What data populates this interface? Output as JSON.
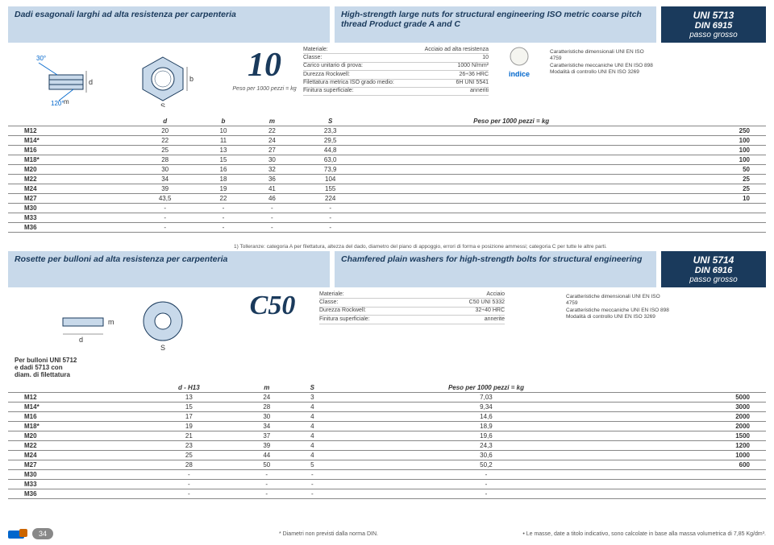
{
  "section1": {
    "title_it": "Dadi esagonali larghi ad alta resistenza per carpenteria",
    "title_en": "High-strength large nuts for structural engineering ISO metric coarse pitch thread Product grade A and C",
    "bignum": "10",
    "peso_label": "Peso per 1000 pezzi = kg",
    "angle1": "30°",
    "angle2": "120°",
    "dim_d": "d",
    "dim_m": "m",
    "dim_b": "b",
    "dim_s": "S",
    "specs": [
      [
        "Materiale:",
        "Acciaio ad alta resistenza"
      ],
      [
        "Classe:",
        "10"
      ],
      [
        "Carico unitario di prova:",
        "1000 N/mm²"
      ],
      [
        "Durezza Rockwell:",
        "26÷36 HRC"
      ],
      [
        "Filettatura metrica ISO grado medio:",
        "6H UNI 5541"
      ],
      [
        "Finitura superficiale:",
        "anneriti"
      ]
    ],
    "indice": "indice",
    "std": {
      "uni": "UNI 5713",
      "din": "DIN 6915",
      "passo": "passo grosso"
    },
    "notes": [
      "Caratteristiche dimensionali UNI EN ISO 4759",
      "Caratteristiche meccaniche UNI EN ISO 898",
      "Modalità di controllo UNI EN ISO 3269"
    ]
  },
  "table1": {
    "cols": [
      "",
      "d",
      "b",
      "m",
      "S",
      "Peso per 1000 pezzi = kg",
      ""
    ],
    "rows": [
      [
        "M12",
        "20",
        "10",
        "22",
        "23,3",
        "",
        "250"
      ],
      [
        "M14*",
        "22",
        "11",
        "24",
        "29,5",
        "",
        "100"
      ],
      [
        "M16",
        "25",
        "13",
        "27",
        "44,8",
        "",
        "100"
      ],
      [
        "M18*",
        "28",
        "15",
        "30",
        "63,0",
        "",
        "100"
      ],
      [
        "M20",
        "30",
        "16",
        "32",
        "73,9",
        "",
        "50"
      ],
      [
        "M22",
        "34",
        "18",
        "36",
        "104",
        "",
        "25"
      ],
      [
        "M24",
        "39",
        "19",
        "41",
        "155",
        "",
        "25"
      ],
      [
        "M27",
        "43,5",
        "22",
        "46",
        "224",
        "",
        "10"
      ],
      [
        "M30",
        "-",
        "-",
        "-",
        "-",
        "",
        ""
      ],
      [
        "M33",
        "-",
        "-",
        "-",
        "-",
        "",
        ""
      ],
      [
        "M36",
        "-",
        "-",
        "-",
        "-",
        "",
        ""
      ]
    ]
  },
  "section2": {
    "tolnote": "1) Tolleranze: categoria A per filettatura, altezza del dado, diametro del piano di appoggio, errori di forma e posizione ammessi; categoria C per tutte le altre parti.",
    "title_it": "Rosette per bulloni ad alta resistenza per carpenteria",
    "title_en": "Chamfered plain washers for high-strength bolts for structural engineering",
    "bignum": "C50",
    "dim_m": "m",
    "dim_d": "d",
    "dim_s": "S",
    "specs": [
      [
        "Materiale:",
        "Acciaio"
      ],
      [
        "Classe:",
        "C50 UNI 5332"
      ],
      [
        "Durezza Rockwell:",
        "32÷40 HRC"
      ],
      [
        "Finitura superficiale:",
        "annerite"
      ]
    ],
    "std": {
      "uni": "UNI 5714",
      "din": "DIN 6916",
      "passo": "passo grosso"
    },
    "notes": [
      "Caratteristiche dimensionali UNI EN ISO 4759",
      "Caratteristiche meccaniche UNI EN ISO 898",
      "Modalità di controllo UNI EN ISO 3269"
    ]
  },
  "table2": {
    "prenote": [
      "Per bulloni UNI 5712",
      "e dadi 5713 con",
      "diam. di filettatura"
    ],
    "cols": [
      "",
      "d - H13",
      "m",
      "S",
      "Peso per 1000 pezzi = kg",
      ""
    ],
    "rows": [
      [
        "M12",
        "13",
        "24",
        "3",
        "7,03",
        "5000"
      ],
      [
        "M14*",
        "15",
        "28",
        "4",
        "9,34",
        "3000"
      ],
      [
        "M16",
        "17",
        "30",
        "4",
        "14,6",
        "2000"
      ],
      [
        "M18*",
        "19",
        "34",
        "4",
        "18,9",
        "2000"
      ],
      [
        "M20",
        "21",
        "37",
        "4",
        "19,6",
        "1500"
      ],
      [
        "M22",
        "23",
        "39",
        "4",
        "24,3",
        "1200"
      ],
      [
        "M24",
        "25",
        "44",
        "4",
        "30,6",
        "1000"
      ],
      [
        "M27",
        "28",
        "50",
        "5",
        "50,2",
        "600"
      ],
      [
        "M30",
        "-",
        "-",
        "-",
        "-",
        ""
      ],
      [
        "M33",
        "-",
        "-",
        "-",
        "-",
        ""
      ],
      [
        "M36",
        "-",
        "-",
        "-",
        "-",
        ""
      ]
    ]
  },
  "footer": {
    "page": "34",
    "mid": "* Diametri non previsti dalla norma DIN.",
    "right": "• Le masse, date a titolo indicativo, sono calcolate in base alla massa volumetrica di 7,85 Kg/dm³."
  },
  "colors": {
    "header_bg": "#c8d9ea",
    "dark": "#1a3a5c",
    "line": "#888",
    "blue": "#0066cc"
  }
}
